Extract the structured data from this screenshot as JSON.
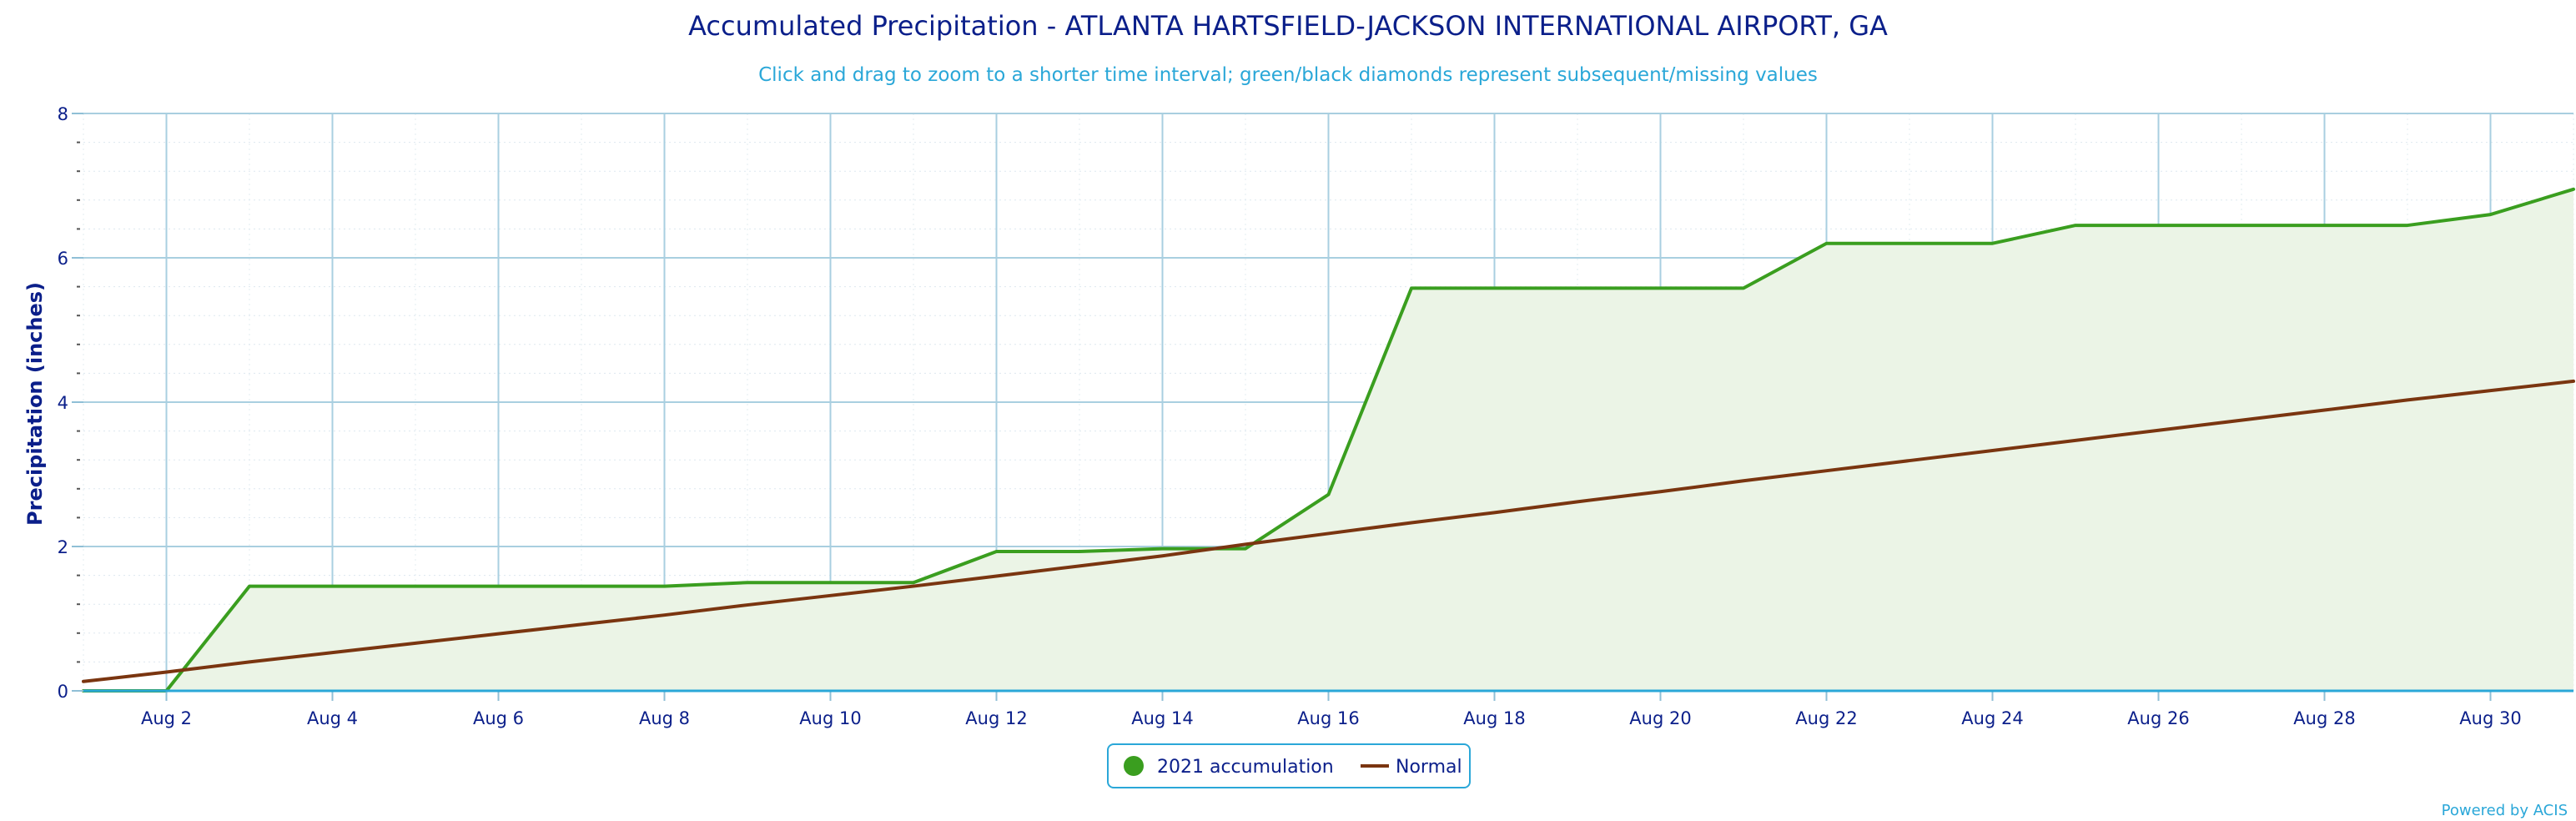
{
  "chart": {
    "title": "Accumulated Precipitation - ATLANTA HARTSFIELD-JACKSON INTERNATIONAL AIRPORT, GA",
    "subtitle": "Click and drag to zoom to a shorter time interval; green/black diamonds represent subsequent/missing values",
    "credit": "Powered by ACIS"
  },
  "chart_data": {
    "type": "area",
    "title": "Accumulated Precipitation - ATLANTA HARTSFIELD-JACKSON INTERNATIONAL AIRPORT, GA",
    "subtitle": "Click and drag to zoom to a shorter time interval; green/black diamonds represent subsequent/missing values",
    "xlabel": "",
    "ylabel": "Precipitation (inches)",
    "x": [
      1,
      2,
      3,
      4,
      5,
      6,
      7,
      8,
      9,
      10,
      11,
      12,
      13,
      14,
      15,
      16,
      17,
      18,
      19,
      20,
      21,
      22,
      23,
      24,
      25,
      26,
      27,
      28,
      29,
      30,
      31
    ],
    "x_unit": "day of August 2021",
    "xlim": [
      1,
      31
    ],
    "ylim": [
      0,
      8
    ],
    "x_tick_labels": [
      "Aug 2",
      "Aug 4",
      "Aug 6",
      "Aug 8",
      "Aug 10",
      "Aug 12",
      "Aug 14",
      "Aug 16",
      "Aug 18",
      "Aug 20",
      "Aug 22",
      "Aug 24",
      "Aug 26",
      "Aug 28",
      "Aug 30"
    ],
    "x_tick_values": [
      2,
      4,
      6,
      8,
      10,
      12,
      14,
      16,
      18,
      20,
      22,
      24,
      26,
      28,
      30
    ],
    "y_tick_values": [
      0,
      2,
      4,
      6,
      8
    ],
    "grid": true,
    "legend_position": "bottom-center",
    "series": [
      {
        "name": "2021 accumulation",
        "color": "#3a9e1f",
        "fill": "#ebf4e6",
        "style": "line-with-filled-area",
        "values": [
          0.0,
          0.0,
          1.45,
          1.45,
          1.45,
          1.45,
          1.45,
          1.45,
          1.5,
          1.5,
          1.5,
          1.93,
          1.93,
          1.97,
          1.97,
          2.72,
          5.58,
          5.58,
          5.58,
          5.58,
          5.58,
          6.2,
          6.2,
          6.2,
          6.45,
          6.45,
          6.45,
          6.45,
          6.45,
          6.6,
          6.95
        ]
      },
      {
        "name": "Normal",
        "color": "#7a3510",
        "style": "line",
        "values": [
          0.13,
          0.26,
          0.4,
          0.53,
          0.66,
          0.79,
          0.92,
          1.05,
          1.19,
          1.32,
          1.45,
          1.59,
          1.73,
          1.87,
          2.03,
          2.18,
          2.33,
          2.47,
          2.62,
          2.76,
          2.91,
          3.05,
          3.19,
          3.33,
          3.47,
          3.61,
          3.75,
          3.89,
          4.03,
          4.16,
          4.29
        ]
      }
    ]
  }
}
